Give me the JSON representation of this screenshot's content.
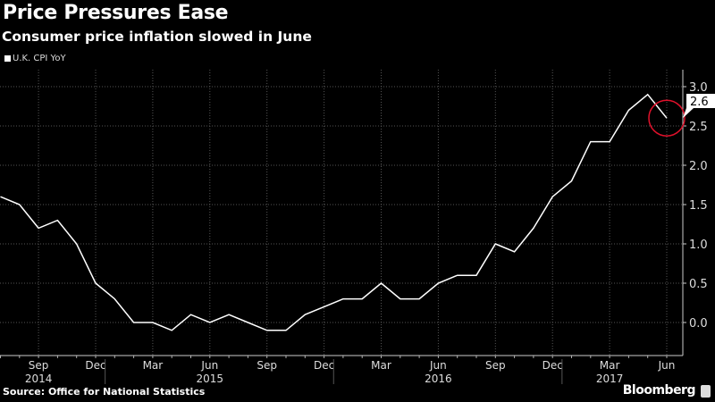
{
  "title": "Price Pressures Ease",
  "subtitle": "Consumer price inflation slowed in June",
  "source": "Source: Office for National Statistics",
  "brand": "Bloomberg",
  "colors": {
    "background": "#000000",
    "line": "#ffffff",
    "highlight": "#e0112b"
  },
  "chart_data": {
    "type": "line",
    "title": "Price Pressures Ease",
    "subtitle": "Consumer price inflation slowed in June",
    "legend": [
      "U.K. CPI YoY"
    ],
    "legend_position": "top-left",
    "x": [
      "2014-07",
      "2014-08",
      "2014-09",
      "2014-10",
      "2014-11",
      "2014-12",
      "2015-01",
      "2015-02",
      "2015-03",
      "2015-04",
      "2015-05",
      "2015-06",
      "2015-07",
      "2015-08",
      "2015-09",
      "2015-10",
      "2015-11",
      "2015-12",
      "2016-01",
      "2016-02",
      "2016-03",
      "2016-04",
      "2016-05",
      "2016-06",
      "2016-07",
      "2016-08",
      "2016-09",
      "2016-10",
      "2016-11",
      "2016-12",
      "2017-01",
      "2017-02",
      "2017-03",
      "2017-04",
      "2017-05",
      "2017-06"
    ],
    "series": [
      {
        "name": "U.K. CPI YoY",
        "values": [
          1.6,
          1.5,
          1.2,
          1.3,
          1.0,
          0.5,
          0.3,
          0.0,
          0.0,
          -0.1,
          0.1,
          0.0,
          0.1,
          0.0,
          -0.1,
          -0.1,
          0.1,
          0.2,
          0.3,
          0.3,
          0.5,
          0.3,
          0.3,
          0.5,
          0.6,
          0.6,
          1.0,
          0.9,
          1.2,
          1.6,
          1.8,
          2.3,
          2.3,
          2.7,
          2.9,
          2.6
        ]
      }
    ],
    "last_value_label": "2.6",
    "ylim": [
      -0.25,
      3.2
    ],
    "yticks": [
      0.0,
      0.5,
      1.0,
      1.5,
      2.0,
      2.5,
      3.0
    ],
    "ytick_labels": [
      "0.0",
      "0.5",
      "1.0",
      "1.5",
      "2.0",
      "2.5",
      "3.0"
    ],
    "xticks": [
      {
        "index": 2,
        "label": "Sep"
      },
      {
        "index": 5,
        "label": "Dec"
      },
      {
        "index": 8,
        "label": "Mar"
      },
      {
        "index": 11,
        "label": "Jun"
      },
      {
        "index": 14,
        "label": "Sep"
      },
      {
        "index": 17,
        "label": "Dec"
      },
      {
        "index": 20,
        "label": "Mar"
      },
      {
        "index": 23,
        "label": "Jun"
      },
      {
        "index": 26,
        "label": "Sep"
      },
      {
        "index": 29,
        "label": "Dec"
      },
      {
        "index": 32,
        "label": "Mar"
      },
      {
        "index": 35,
        "label": "Jun"
      }
    ],
    "years": [
      {
        "center_index": 2,
        "label": "2014"
      },
      {
        "center_index": 11,
        "label": "2015"
      },
      {
        "center_index": 23,
        "label": "2016"
      },
      {
        "center_index": 32,
        "label": "2017"
      }
    ],
    "year_separators": [
      5.5,
      17.5,
      29.5
    ],
    "grid": true
  }
}
